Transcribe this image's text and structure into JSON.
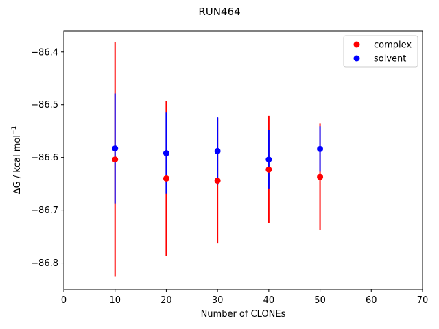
{
  "chart_data": {
    "type": "scatter",
    "title": "RUN464",
    "xlabel": "Number of CLONEs",
    "ylabel_main": "ΔG / kcal mol",
    "ylabel_sup": "−1",
    "xlim": [
      0,
      70
    ],
    "ylim": [
      -86.85,
      -86.36
    ],
    "xticks": [
      0,
      10,
      20,
      30,
      40,
      50,
      60,
      70
    ],
    "xtick_labels": [
      "0",
      "10",
      "20",
      "30",
      "40",
      "50",
      "60",
      "70"
    ],
    "yticks": [
      -86.4,
      -86.5,
      -86.6,
      -86.7,
      -86.8
    ],
    "ytick_labels": [
      "−86.4",
      "−86.5",
      "−86.6",
      "−86.7",
      "−86.8"
    ],
    "grid": false,
    "legend_position": "top-right",
    "series": [
      {
        "name": "complex",
        "color": "#ff0000",
        "points": [
          {
            "x": 10,
            "y": -86.604,
            "err": 0.222
          },
          {
            "x": 20,
            "y": -86.64,
            "err": 0.147
          },
          {
            "x": 30,
            "y": -86.644,
            "err": 0.119
          },
          {
            "x": 40,
            "y": -86.623,
            "err": 0.102
          },
          {
            "x": 50,
            "y": -86.637,
            "err": 0.101
          }
        ]
      },
      {
        "name": "solvent",
        "color": "#0000ff",
        "points": [
          {
            "x": 10,
            "y": -86.583,
            "err": 0.104
          },
          {
            "x": 20,
            "y": -86.592,
            "err": 0.077
          },
          {
            "x": 30,
            "y": -86.588,
            "err": 0.064
          },
          {
            "x": 40,
            "y": -86.604,
            "err": 0.056
          },
          {
            "x": 50,
            "y": -86.584,
            "err": 0.043
          }
        ]
      }
    ]
  }
}
